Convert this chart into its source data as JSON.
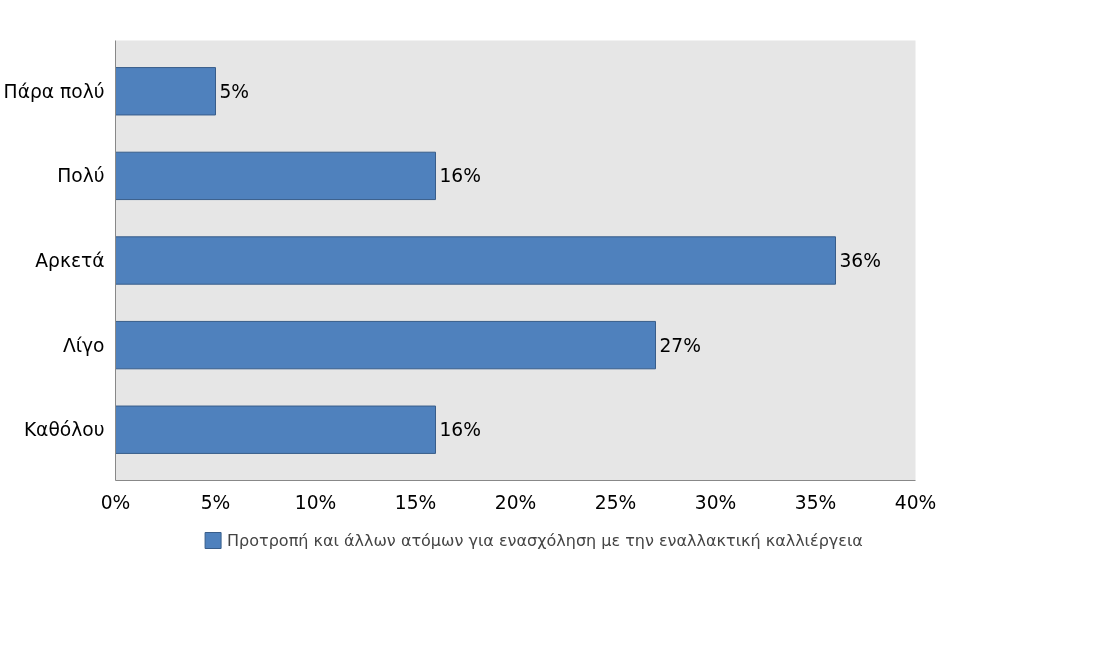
{
  "chart_data": {
    "type": "bar",
    "orientation": "horizontal",
    "categories": [
      "Πάρα πολύ",
      "Πολύ",
      "Αρκετά",
      "Λίγο",
      "Καθόλου"
    ],
    "series": [
      {
        "name": "Προτροπή και άλλων ατόμων για ενασχόληση με την εναλλακτική καλλιέργεια",
        "color": "#4f81bd",
        "values": [
          5,
          16,
          36,
          27,
          16
        ],
        "value_labels": [
          "5%",
          "16%",
          "36%",
          "27%",
          "16%"
        ]
      }
    ],
    "xlim": [
      0,
      40
    ],
    "xticks": [
      {
        "value": 0,
        "label": "0%"
      },
      {
        "value": 5,
        "label": "5%"
      },
      {
        "value": 10,
        "label": "10%"
      },
      {
        "value": 15,
        "label": "15%"
      },
      {
        "value": 20,
        "label": "20%"
      },
      {
        "value": 25,
        "label": "25%"
      },
      {
        "value": 30,
        "label": "30%"
      },
      {
        "value": 35,
        "label": "35%"
      },
      {
        "value": 40,
        "label": "40%"
      }
    ],
    "grid": false,
    "legend": "bottom"
  }
}
